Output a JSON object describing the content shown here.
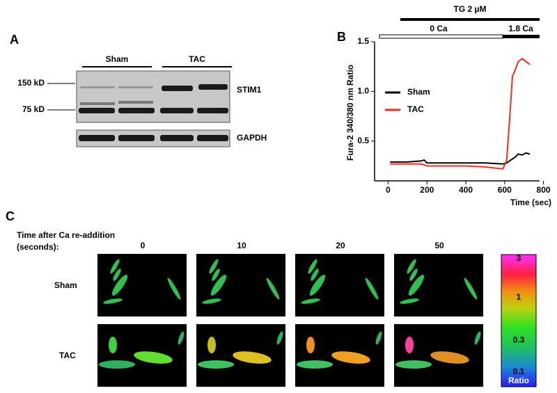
{
  "panel_a": {
    "label": "A",
    "groups": [
      "Sham",
      "TAC"
    ],
    "markers": [
      "150 kD",
      "75 kD"
    ],
    "proteins": [
      "STIM1",
      "GAPDH"
    ]
  },
  "chart_data": {
    "type": "line",
    "label": "B",
    "annotations": [
      "TG  2 µM",
      "0 Ca",
      "1.8 Ca"
    ],
    "y_label": "Fura-2 340/380 nm Ratio",
    "x_label": "Time (sec)",
    "x": [
      10,
      100,
      170,
      185,
      200,
      300,
      400,
      500,
      590,
      610,
      625,
      640,
      655,
      670,
      690,
      710,
      730
    ],
    "series": [
      {
        "name": "Sham",
        "color": "#000000",
        "values": [
          0.29,
          0.29,
          0.3,
          0.31,
          0.28,
          0.28,
          0.28,
          0.28,
          0.27,
          0.28,
          0.3,
          0.32,
          0.34,
          0.37,
          0.36,
          0.38,
          0.37
        ]
      },
      {
        "name": "TAC",
        "color": "#ff2a1a",
        "values": [
          0.27,
          0.27,
          0.27,
          0.26,
          0.25,
          0.25,
          0.25,
          0.24,
          0.22,
          0.3,
          0.7,
          1.15,
          1.22,
          1.3,
          1.33,
          1.3,
          1.27
        ]
      }
    ],
    "xlim": [
      -70,
      780
    ],
    "xticks": [
      0,
      200,
      400,
      600,
      800
    ],
    "ylim": [
      0.1,
      1.5
    ],
    "yticks": [
      0.5,
      {
        "value": 1,
        "label": "1.0"
      },
      1.5
    ]
  },
  "panel_c": {
    "label": "C",
    "heading": "Time  after Ca re-addition",
    "subheading": "(seconds):",
    "timepoints": [
      0,
      10,
      20,
      50
    ],
    "rows": [
      "Sham",
      "TAC"
    ],
    "colorbar": {
      "ticks": [
        3,
        1,
        0.3,
        0.1
      ],
      "title": "Ratio"
    }
  }
}
